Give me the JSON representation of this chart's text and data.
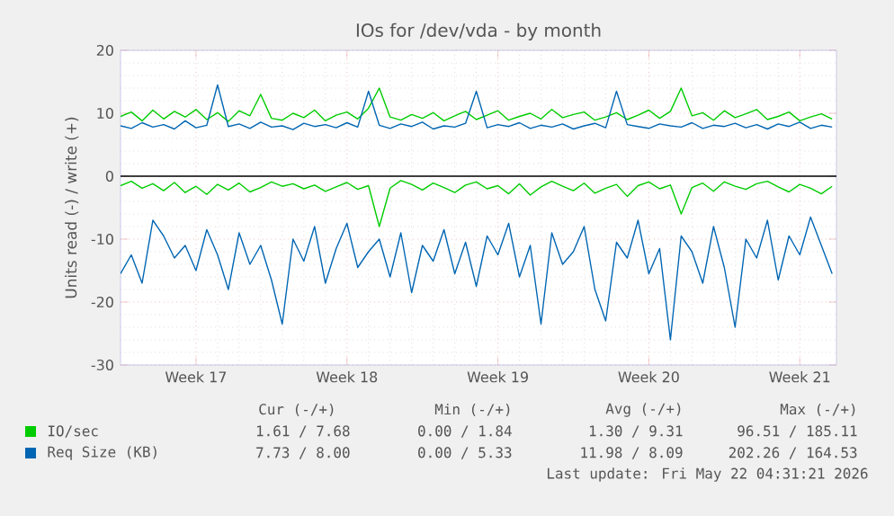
{
  "chart_data": {
    "type": "line",
    "title": "IOs for /dev/vda - by month",
    "ylabel": "Units read (-) / write (+)",
    "categories": [
      null,
      null,
      null,
      null,
      null,
      null,
      null,
      "Week 17",
      null,
      null,
      null,
      null,
      null,
      null,
      null,
      null,
      null,
      null,
      null,
      null,
      null,
      "Week 18",
      null,
      null,
      null,
      null,
      null,
      null,
      null,
      null,
      null,
      null,
      null,
      null,
      null,
      "Week 19",
      null,
      null,
      null,
      null,
      null,
      null,
      null,
      null,
      null,
      null,
      null,
      null,
      null,
      "Week 20",
      null,
      null,
      null,
      null,
      null,
      null,
      null,
      null,
      null,
      null,
      null,
      null,
      null,
      "Week 21",
      null,
      null,
      null
    ],
    "ylim": [
      -30,
      20
    ],
    "yticks": [
      -30,
      -20,
      -10,
      0,
      10,
      20
    ],
    "grid": true,
    "legend": "bottom",
    "marker": "none",
    "line_style": "solid",
    "ref_lines": [
      {
        "axis": "y",
        "value": 0,
        "color": "#000000"
      }
    ],
    "series": [
      {
        "name": "IO/sec",
        "color": "#00cc00",
        "values": [
          9.5,
          10.2,
          8.8,
          10.5,
          9.1,
          10.3,
          9.4,
          10.6,
          9.0,
          10.1,
          8.7,
          10.4,
          9.6,
          13.0,
          9.2,
          8.9,
          10.0,
          9.3,
          10.5,
          8.8,
          9.7,
          10.2,
          9.1,
          10.8,
          14.0,
          9.4,
          8.9,
          9.8,
          9.2,
          10.1,
          8.8,
          9.6,
          10.3,
          9.0,
          9.7,
          10.4,
          8.9,
          9.5,
          10.0,
          9.1,
          10.6,
          9.3,
          9.8,
          10.2,
          8.9,
          9.4,
          10.1,
          9.0,
          9.7,
          10.5,
          9.2,
          10.3,
          14.0,
          9.6,
          10.1,
          8.9,
          10.4,
          9.3,
          9.9,
          10.6,
          9.0,
          9.5,
          10.2,
          8.8,
          9.4,
          9.9,
          9.1
        ]
      },
      {
        "color": "#00cc00",
        "values": [
          -1.5,
          -0.8,
          -1.9,
          -1.2,
          -2.3,
          -1.0,
          -2.6,
          -1.6,
          -2.9,
          -1.3,
          -2.2,
          -1.1,
          -2.5,
          -1.8,
          -0.9,
          -1.6,
          -1.2,
          -2.0,
          -1.4,
          -2.4,
          -1.7,
          -1.0,
          -2.1,
          -1.5,
          -8.0,
          -1.9,
          -0.7,
          -1.3,
          -2.2,
          -1.1,
          -1.8,
          -2.6,
          -1.4,
          -0.9,
          -2.0,
          -1.5,
          -2.8,
          -1.2,
          -3.0,
          -1.7,
          -0.8,
          -1.6,
          -2.3,
          -1.1,
          -2.7,
          -1.9,
          -1.3,
          -3.2,
          -1.5,
          -0.9,
          -2.0,
          -1.4,
          -6.0,
          -1.8,
          -1.1,
          -2.4,
          -0.9,
          -1.6,
          -2.1,
          -1.2,
          -0.8,
          -1.7,
          -2.5,
          -1.3,
          -1.9,
          -2.8,
          -1.6
        ]
      },
      {
        "name": "Req Size (KB)",
        "color": "#0066b3",
        "values": [
          8.0,
          7.6,
          8.5,
          7.8,
          8.2,
          7.5,
          8.8,
          7.7,
          8.1,
          14.5,
          7.9,
          8.3,
          7.6,
          8.6,
          7.8,
          8.0,
          7.4,
          8.4,
          7.9,
          8.2,
          7.7,
          8.5,
          7.8,
          13.5,
          8.1,
          7.6,
          8.3,
          7.9,
          8.6,
          7.5,
          8.0,
          7.8,
          8.4,
          13.5,
          7.7,
          8.2,
          7.9,
          8.5,
          7.6,
          8.1,
          7.8,
          8.3,
          7.5,
          8.0,
          8.4,
          7.7,
          13.5,
          8.2,
          7.9,
          7.6,
          8.3,
          8.0,
          7.8,
          8.5,
          7.6,
          8.1,
          7.9,
          8.4,
          7.7,
          8.2,
          7.5,
          8.3,
          7.9,
          8.6,
          7.6,
          8.1,
          7.8
        ]
      },
      {
        "color": "#0066b3",
        "values": [
          -15.5,
          -12.5,
          -17.0,
          -7.0,
          -9.5,
          -13.0,
          -11.0,
          -15.0,
          -8.5,
          -12.5,
          -18.0,
          -9.0,
          -14.0,
          -11.0,
          -16.5,
          -23.5,
          -10.0,
          -13.5,
          -8.0,
          -17.0,
          -11.5,
          -7.5,
          -14.5,
          -12.0,
          -10.0,
          -16.0,
          -9.0,
          -18.5,
          -11.0,
          -13.5,
          -8.5,
          -15.5,
          -10.5,
          -17.5,
          -9.5,
          -12.5,
          -7.5,
          -16.0,
          -11.0,
          -23.5,
          -9.0,
          -14.0,
          -12.0,
          -8.0,
          -18.0,
          -23.0,
          -10.5,
          -13.0,
          -7.0,
          -15.5,
          -11.5,
          -26.0,
          -9.5,
          -12.0,
          -17.0,
          -8.0,
          -14.5,
          -24.0,
          -10.0,
          -13.0,
          -7.0,
          -16.5,
          -9.5,
          -12.5,
          -6.5,
          -11.0,
          -15.5
        ]
      }
    ],
    "annotations": [
      "Cur (-/+)",
      "Min (-/+)",
      "Avg (-/+)",
      "Max (-/+)",
      "1.61 / 7.68",
      "0.00 / 1.84",
      "1.30 / 9.31",
      "96.51 / 185.11",
      "7.73 / 8.00",
      "0.00 / 5.33",
      "11.98 / 8.09",
      "202.26 / 164.53",
      "Last update: Fri May 22 04:31:21 2026"
    ]
  }
}
